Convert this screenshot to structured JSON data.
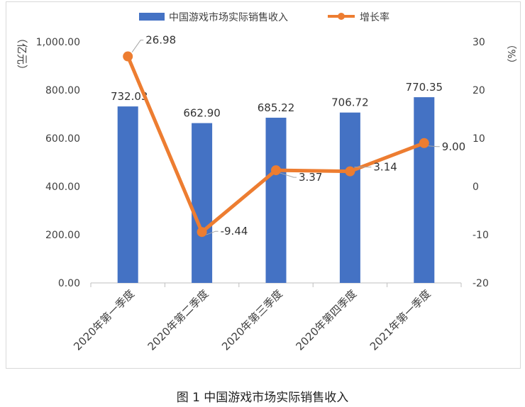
{
  "caption": "图 1  中国游戏市场实际销售收入",
  "chart_data": {
    "type": "bar",
    "categories": [
      "2020年第一季度",
      "2020年第二季度",
      "2020年第三季度",
      "2020年第四季度",
      "2021年第一季度"
    ],
    "series": [
      {
        "name": "中国游戏市场实际销售收入",
        "type": "bar",
        "axis": "left",
        "color": "#4472C4",
        "values": [
          732.03,
          662.9,
          685.22,
          706.72,
          770.35
        ],
        "labels": [
          "732.03",
          "662.90",
          "685.22",
          "706.72",
          "770.35"
        ]
      },
      {
        "name": "增长率",
        "type": "line",
        "axis": "right",
        "color": "#ED7D31",
        "values": [
          26.98,
          -9.44,
          3.37,
          3.14,
          9.0
        ],
        "labels": [
          "26.98",
          "-9.44",
          "3.37",
          "3.14",
          "9.00"
        ]
      }
    ],
    "ylabel_left": "（亿元）",
    "ylabel_right": "（%）",
    "ylim_left": [
      0,
      1000
    ],
    "ylim_right": [
      -20,
      30
    ],
    "yticks_left": [
      "0.00",
      "200.00",
      "400.00",
      "600.00",
      "800.00",
      "1,000.00"
    ],
    "yticks_right": [
      "-20",
      "-10",
      "0",
      "10",
      "20",
      "30"
    ],
    "legend_position": "top",
    "grid": false
  }
}
